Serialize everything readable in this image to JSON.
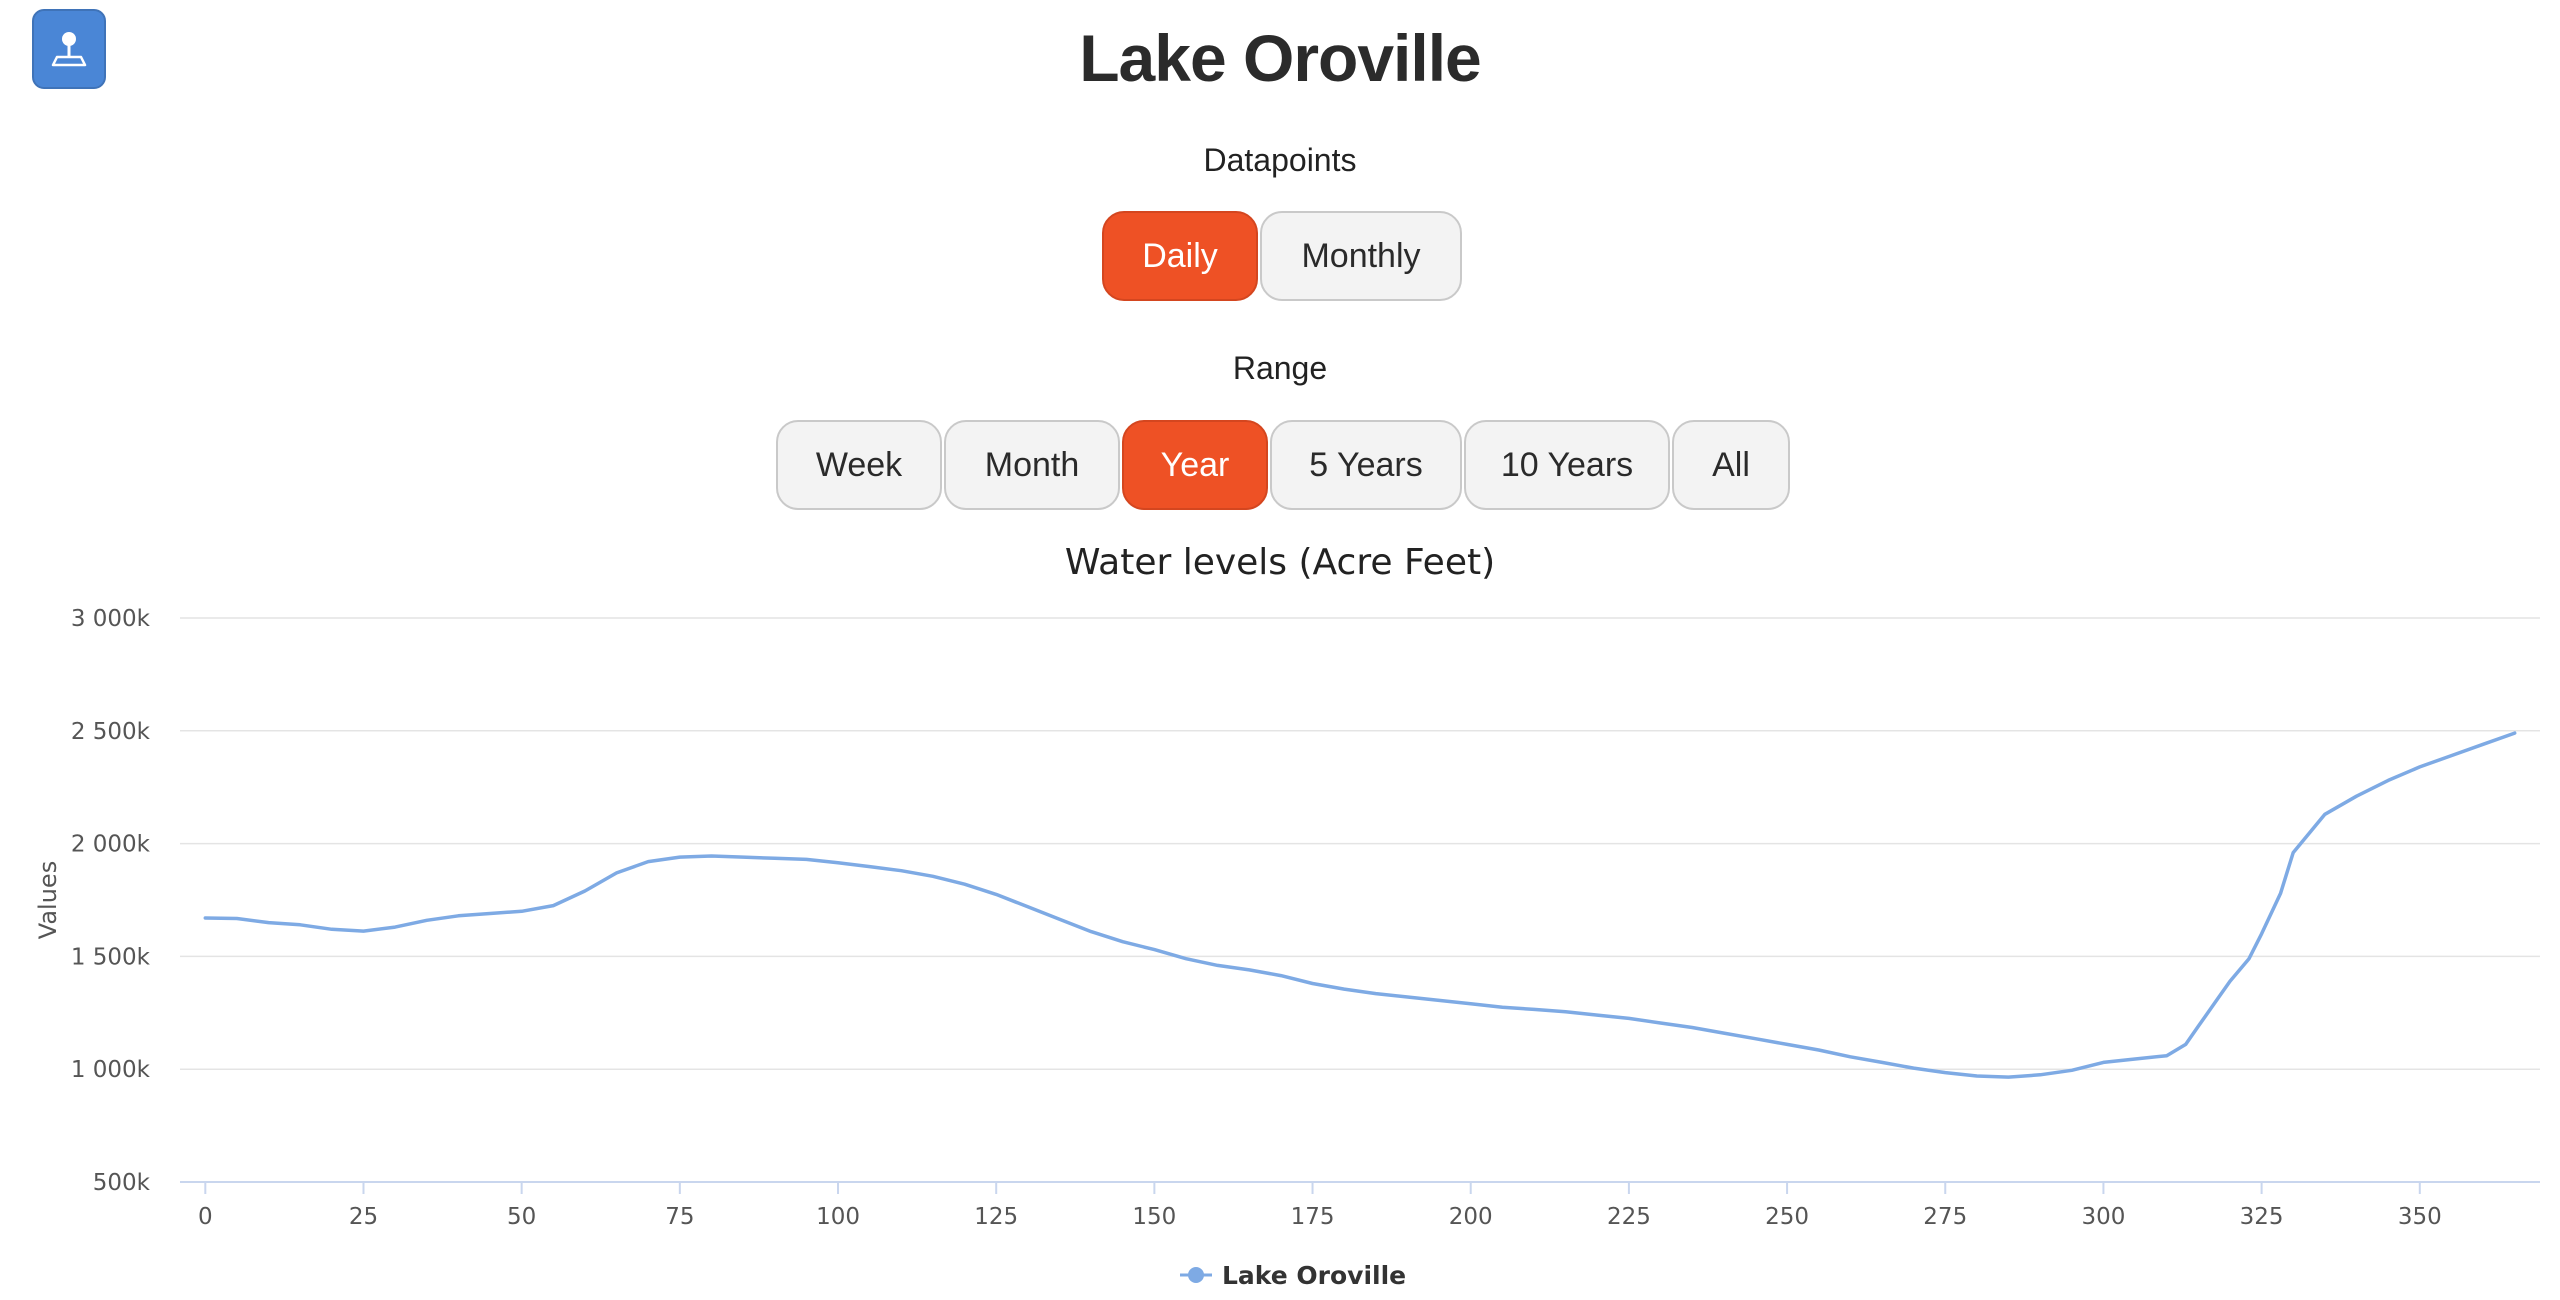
{
  "app": {
    "title": "Lake Oroville",
    "map_button_icon": "map-pin-icon",
    "accent_color": "#ee5125",
    "line_color": "#7eaae4"
  },
  "datapoints": {
    "label": "Datapoints",
    "options": [
      "Daily",
      "Monthly"
    ],
    "selected": "Daily"
  },
  "range": {
    "label": "Range",
    "options": [
      "Week",
      "Month",
      "Year",
      "5 Years",
      "10 Years",
      "All"
    ],
    "selected": "Year"
  },
  "chart_data": {
    "type": "line",
    "title": "Water levels (Acre Feet)",
    "xlabel": "",
    "ylabel": "Values",
    "xlim": [
      -4,
      369
    ],
    "ylim": [
      500000,
      3000000
    ],
    "x_ticks": [
      0,
      25,
      50,
      75,
      100,
      125,
      150,
      175,
      200,
      225,
      250,
      275,
      300,
      325,
      350
    ],
    "x_tick_labels": [
      "0",
      "25",
      "50",
      "75",
      "100",
      "125",
      "150",
      "175",
      "200",
      "225",
      "250",
      "275",
      "300",
      "325",
      "350"
    ],
    "y_ticks": [
      500000,
      1000000,
      1500000,
      2000000,
      2500000,
      3000000
    ],
    "y_tick_labels": [
      "500k",
      "1 000k",
      "1 500k",
      "2 000k",
      "2 500k",
      "3 000k"
    ],
    "grid": true,
    "legend_position": "bottom-center",
    "series": [
      {
        "name": "Lake Oroville",
        "x": [
          0,
          5,
          10,
          15,
          20,
          25,
          30,
          35,
          40,
          45,
          50,
          55,
          60,
          65,
          70,
          75,
          80,
          85,
          90,
          95,
          100,
          105,
          110,
          115,
          120,
          125,
          130,
          135,
          140,
          145,
          150,
          155,
          160,
          165,
          170,
          175,
          180,
          185,
          190,
          195,
          200,
          205,
          210,
          215,
          220,
          225,
          230,
          235,
          240,
          245,
          250,
          255,
          260,
          265,
          270,
          275,
          280,
          285,
          290,
          295,
          300,
          305,
          310,
          313,
          315,
          318,
          320,
          323,
          325,
          328,
          330,
          335,
          340,
          345,
          350,
          355,
          360,
          365
        ],
        "y": [
          1670000,
          1668000,
          1650000,
          1640000,
          1620000,
          1612000,
          1630000,
          1660000,
          1680000,
          1690000,
          1700000,
          1725000,
          1790000,
          1870000,
          1920000,
          1940000,
          1945000,
          1940000,
          1935000,
          1930000,
          1915000,
          1898000,
          1880000,
          1855000,
          1820000,
          1775000,
          1720000,
          1665000,
          1610000,
          1565000,
          1530000,
          1490000,
          1460000,
          1440000,
          1415000,
          1380000,
          1355000,
          1335000,
          1320000,
          1305000,
          1290000,
          1275000,
          1265000,
          1255000,
          1240000,
          1225000,
          1205000,
          1185000,
          1160000,
          1135000,
          1110000,
          1085000,
          1055000,
          1030000,
          1005000,
          985000,
          970000,
          965000,
          975000,
          995000,
          1030000,
          1045000,
          1060000,
          1110000,
          1190000,
          1310000,
          1390000,
          1490000,
          1600000,
          1780000,
          1960000,
          2130000,
          2210000,
          2280000,
          2340000,
          2390000,
          2440000,
          2490000
        ]
      }
    ]
  }
}
